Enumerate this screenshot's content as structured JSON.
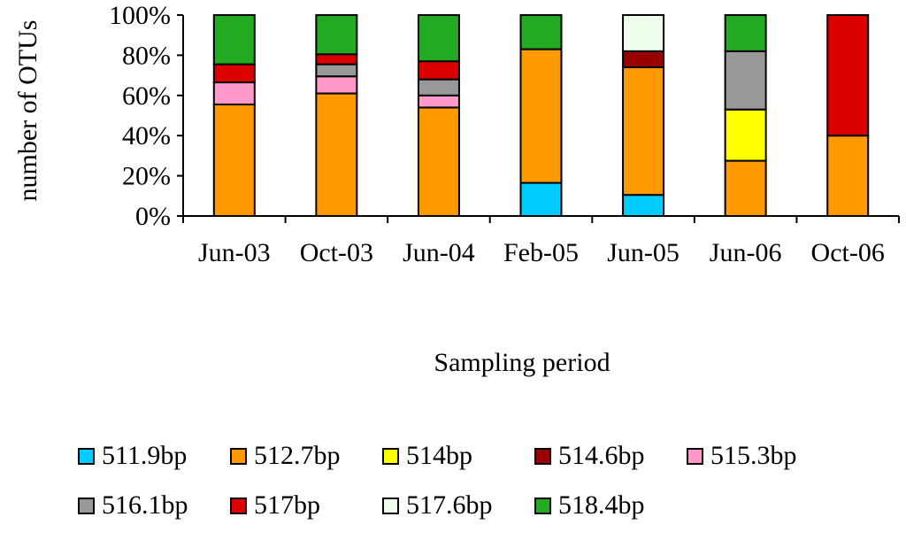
{
  "chart_data": {
    "type": "bar",
    "stacked": true,
    "percent": true,
    "title": "",
    "xlabel": "Sampling period",
    "ylabel": "number of OTUs",
    "ylim": [
      0,
      100
    ],
    "yticks": [
      "0%",
      "20%",
      "40%",
      "60%",
      "80%",
      "100%"
    ],
    "categories": [
      "Jun-03",
      "Oct-03",
      "Jun-04",
      "Feb-05",
      "Jun-05",
      "Jun-06",
      "Oct-06"
    ],
    "series": [
      {
        "name": "511.9bp",
        "color": "#00CCFF",
        "values": [
          0,
          0,
          0,
          16.5,
          10.5,
          0,
          0
        ]
      },
      {
        "name": "512.7bp",
        "color": "#FF9900",
        "values": [
          55.5,
          61,
          54,
          66.5,
          63.5,
          27.5,
          40
        ]
      },
      {
        "name": "514bp",
        "color": "#FFFF00",
        "values": [
          0,
          0,
          0,
          0,
          0,
          25.5,
          0
        ]
      },
      {
        "name": "514.6bp",
        "color": "#990000",
        "values": [
          0,
          0,
          0,
          0,
          8,
          0,
          0
        ]
      },
      {
        "name": "515.3bp",
        "color": "#FF99CC",
        "values": [
          11,
          8.5,
          6,
          0,
          0,
          0,
          0
        ]
      },
      {
        "name": "516.1bp",
        "color": "#999999",
        "values": [
          0,
          6,
          8,
          0,
          0,
          29,
          0
        ]
      },
      {
        "name": "517bp",
        "color": "#DD0000",
        "values": [
          9,
          5,
          9,
          0,
          0,
          0,
          60
        ]
      },
      {
        "name": "517.6bp",
        "color": "#EEFFEE",
        "values": [
          0,
          0,
          0,
          0,
          18,
          0,
          0
        ]
      },
      {
        "name": "518.4bp",
        "color": "#22AA22",
        "values": [
          24.5,
          19.5,
          23,
          17,
          0,
          18,
          0
        ]
      }
    ]
  }
}
